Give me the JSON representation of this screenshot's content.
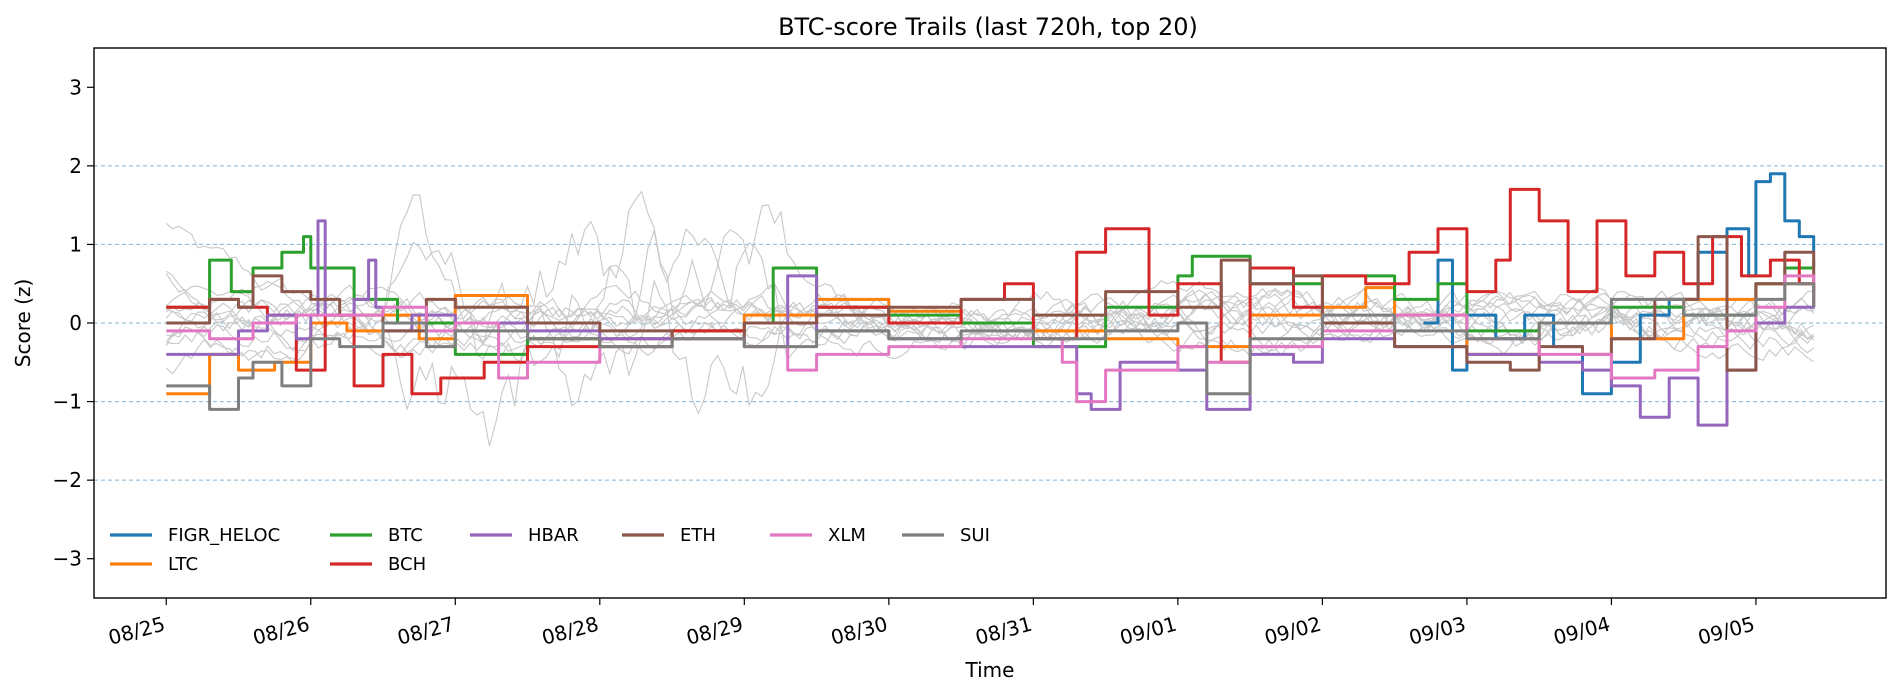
{
  "chart_data": {
    "type": "line",
    "title": "BTC-score Trails (last 720h, top 20)",
    "xlabel": "Time",
    "ylabel": "Score (z)",
    "ylim": [
      -3.5,
      3.5
    ],
    "yticks": [
      -3,
      -2,
      -1,
      0,
      1,
      2,
      3
    ],
    "ytick_labels": [
      "−3",
      "−2",
      "−1",
      "0",
      "1",
      "2",
      "3"
    ],
    "hlines": [
      -2,
      -1,
      0,
      1,
      2
    ],
    "xlim": [
      -0.5,
      11.9
    ],
    "xticks": [
      0,
      1,
      2,
      3,
      4,
      5,
      6,
      7,
      8,
      9,
      10,
      11
    ],
    "xtick_labels": [
      "08/25",
      "08/26",
      "08/27",
      "08/28",
      "08/29",
      "08/30",
      "08/31",
      "09/01",
      "09/02",
      "09/03",
      "09/04",
      "09/05"
    ],
    "legend_position": "lower-left",
    "legend_columns": 6,
    "background_series_count": 12,
    "background_color": "#c8c8c8",
    "series": [
      {
        "name": "FIGR_HELOC",
        "color": "#1f77b4",
        "x": [
          8.7,
          8.8,
          8.9,
          9.0,
          9.2,
          9.4,
          9.6,
          9.8,
          10.0,
          10.2,
          10.4,
          10.6,
          10.8,
          10.95,
          11.0,
          11.1,
          11.2,
          11.3,
          11.4
        ],
        "y": [
          0.0,
          0.8,
          -0.6,
          0.1,
          -0.2,
          0.1,
          -0.3,
          -0.9,
          -0.5,
          0.1,
          0.3,
          0.9,
          1.2,
          0.6,
          1.8,
          1.9,
          1.3,
          1.1,
          0.9
        ]
      },
      {
        "name": "LTC",
        "color": "#ff7f0e",
        "x": [
          0.0,
          0.25,
          0.3,
          0.5,
          0.75,
          1.0,
          1.25,
          1.5,
          1.75,
          2.0,
          2.5,
          3.0,
          3.5,
          4.0,
          4.5,
          5.0,
          5.5,
          6.0,
          6.5,
          7.0,
          7.5,
          8.0,
          8.3,
          8.5,
          9.0,
          9.5,
          10.0,
          10.5,
          11.0,
          11.4
        ],
        "y": [
          -0.9,
          -0.9,
          -0.4,
          -0.6,
          -0.5,
          0.0,
          -0.1,
          0.1,
          -0.2,
          0.35,
          -0.2,
          -0.3,
          -0.1,
          0.1,
          0.3,
          0.15,
          0.0,
          -0.1,
          -0.2,
          -0.3,
          0.1,
          0.2,
          0.45,
          0.1,
          -0.4,
          0.0,
          -0.2,
          0.3,
          0.5,
          0.4
        ]
      },
      {
        "name": "BTC",
        "color": "#2ca02c",
        "x": [
          0.0,
          0.25,
          0.3,
          0.45,
          0.6,
          0.8,
          0.95,
          1.0,
          1.3,
          1.6,
          2.0,
          2.5,
          3.0,
          3.5,
          4.0,
          4.2,
          4.5,
          5.0,
          5.5,
          6.0,
          6.5,
          7.0,
          7.1,
          7.5,
          8.0,
          8.5,
          8.8,
          9.0,
          9.5,
          10.0,
          10.5,
          11.0,
          11.2,
          11.4
        ],
        "y": [
          0.2,
          0.2,
          0.8,
          0.4,
          0.7,
          0.9,
          1.1,
          0.7,
          0.3,
          0.0,
          -0.4,
          -0.2,
          -0.3,
          -0.1,
          0.0,
          0.7,
          0.2,
          0.1,
          0.0,
          -0.3,
          0.2,
          0.6,
          0.85,
          0.5,
          0.6,
          0.3,
          0.5,
          -0.1,
          0.0,
          0.2,
          0.1,
          0.5,
          0.7,
          0.8
        ]
      },
      {
        "name": "BCH",
        "color": "#d62728",
        "x": [
          0.0,
          0.3,
          0.5,
          0.7,
          0.9,
          1.1,
          1.3,
          1.5,
          1.7,
          1.9,
          2.2,
          2.5,
          3.0,
          3.5,
          4.0,
          4.5,
          5.0,
          5.5,
          5.8,
          6.0,
          6.3,
          6.5,
          6.8,
          7.0,
          7.3,
          7.5,
          7.8,
          8.0,
          8.3,
          8.6,
          8.8,
          9.0,
          9.2,
          9.3,
          9.5,
          9.7,
          9.9,
          10.1,
          10.3,
          10.5,
          10.7,
          10.9,
          11.1,
          11.3,
          11.4
        ],
        "y": [
          0.2,
          0.3,
          0.2,
          0.1,
          -0.6,
          0.1,
          -0.8,
          -0.4,
          -0.9,
          -0.7,
          -0.5,
          -0.3,
          -0.2,
          -0.1,
          0.0,
          0.2,
          0.0,
          0.3,
          0.5,
          -0.2,
          0.9,
          1.2,
          0.1,
          0.5,
          -0.5,
          0.7,
          0.2,
          0.6,
          0.5,
          0.9,
          1.2,
          0.4,
          0.8,
          1.7,
          1.3,
          0.4,
          1.3,
          0.6,
          0.9,
          0.5,
          1.1,
          0.6,
          0.8,
          0.5,
          0.3
        ]
      },
      {
        "name": "HBAR",
        "color": "#9467bd",
        "x": [
          0.0,
          0.3,
          0.5,
          0.7,
          0.9,
          1.0,
          1.05,
          1.1,
          1.3,
          1.4,
          1.45,
          1.5,
          1.7,
          2.0,
          2.5,
          3.0,
          3.5,
          4.0,
          4.3,
          4.5,
          5.0,
          5.5,
          6.0,
          6.3,
          6.4,
          6.6,
          7.0,
          7.2,
          7.5,
          7.8,
          8.0,
          8.5,
          9.0,
          9.5,
          9.8,
          10.0,
          10.2,
          10.4,
          10.6,
          10.8,
          11.0,
          11.2,
          11.4
        ],
        "y": [
          -0.4,
          -0.4,
          -0.1,
          0.1,
          -0.2,
          0.1,
          1.3,
          0.1,
          0.3,
          0.8,
          0.2,
          -0.1,
          0.1,
          0.0,
          -0.1,
          -0.2,
          -0.2,
          -0.3,
          0.6,
          -0.1,
          -0.2,
          -0.3,
          -0.3,
          -0.9,
          -1.1,
          -0.5,
          -0.6,
          -1.1,
          -0.4,
          -0.5,
          -0.2,
          -0.3,
          -0.4,
          -0.5,
          -0.6,
          -0.8,
          -1.2,
          -0.7,
          -1.3,
          -0.6,
          0.0,
          0.2,
          0.3
        ]
      },
      {
        "name": "ETH",
        "color": "#8c564b",
        "x": [
          0.0,
          0.3,
          0.5,
          0.6,
          0.8,
          1.0,
          1.2,
          1.5,
          1.8,
          2.0,
          2.5,
          3.0,
          3.5,
          4.0,
          4.5,
          5.0,
          5.5,
          6.0,
          6.5,
          7.0,
          7.3,
          7.5,
          7.8,
          8.0,
          8.5,
          9.0,
          9.3,
          9.5,
          9.8,
          10.0,
          10.3,
          10.6,
          10.8,
          11.0,
          11.2,
          11.4
        ],
        "y": [
          0.0,
          0.3,
          0.2,
          0.6,
          0.4,
          0.3,
          0.1,
          -0.1,
          0.3,
          0.2,
          0.0,
          -0.1,
          -0.2,
          0.0,
          0.1,
          0.2,
          0.3,
          0.1,
          0.4,
          0.2,
          0.8,
          0.5,
          0.6,
          0.0,
          -0.3,
          -0.5,
          -0.6,
          -0.3,
          -0.4,
          -0.2,
          0.3,
          1.1,
          -0.6,
          0.5,
          0.9,
          0.4
        ]
      },
      {
        "name": "XLM",
        "color": "#e377c2",
        "x": [
          0.0,
          0.3,
          0.6,
          0.9,
          1.2,
          1.5,
          1.8,
          2.0,
          2.3,
          2.5,
          3.0,
          3.5,
          4.0,
          4.3,
          4.5,
          5.0,
          5.5,
          6.0,
          6.2,
          6.3,
          6.5,
          7.0,
          7.2,
          7.5,
          8.0,
          8.5,
          9.0,
          9.5,
          10.0,
          10.3,
          10.6,
          10.8,
          11.0,
          11.2,
          11.4
        ],
        "y": [
          -0.1,
          -0.2,
          0.0,
          0.1,
          0.1,
          0.2,
          -0.1,
          0.0,
          -0.7,
          -0.5,
          -0.3,
          -0.2,
          -0.3,
          -0.6,
          -0.4,
          -0.3,
          -0.2,
          -0.2,
          -0.5,
          -1.0,
          -0.6,
          -0.3,
          -0.5,
          -0.3,
          -0.1,
          0.1,
          -0.2,
          -0.4,
          -0.7,
          -0.6,
          -0.3,
          -0.1,
          0.2,
          0.6,
          0.2
        ]
      },
      {
        "name": "SUI",
        "color": "#7f7f7f",
        "x": [
          0.0,
          0.2,
          0.3,
          0.5,
          0.6,
          0.8,
          1.0,
          1.2,
          1.5,
          1.8,
          2.0,
          2.5,
          3.0,
          3.5,
          4.0,
          4.5,
          5.0,
          5.5,
          6.0,
          6.5,
          7.0,
          7.2,
          7.5,
          8.0,
          8.5,
          9.0,
          9.5,
          10.0,
          10.5,
          11.0,
          11.2,
          11.4
        ],
        "y": [
          -0.8,
          -0.8,
          -1.1,
          -0.7,
          -0.5,
          -0.8,
          -0.2,
          -0.3,
          0.0,
          -0.3,
          -0.1,
          -0.2,
          -0.3,
          -0.2,
          -0.3,
          -0.1,
          -0.2,
          -0.1,
          -0.2,
          -0.1,
          0.0,
          -0.9,
          -0.2,
          0.1,
          -0.1,
          -0.2,
          0.0,
          0.3,
          0.1,
          0.3,
          0.5,
          0.2
        ]
      }
    ]
  }
}
